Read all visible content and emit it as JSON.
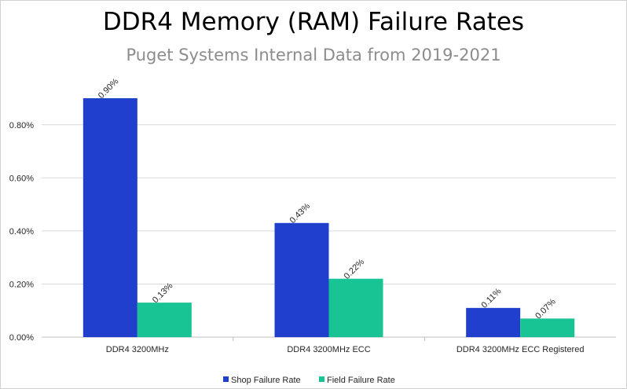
{
  "chart_data": {
    "type": "bar",
    "title": "DDR4 Memory (RAM) Failure Rates",
    "subtitle": "Puget Systems Internal Data from 2019-2021",
    "categories": [
      "DDR4 3200MHz",
      "DDR4 3200MHz ECC",
      "DDR4 3200MHz ECC Registered"
    ],
    "series": [
      {
        "name": "Shop Failure Rate",
        "values": [
          0.9,
          0.43,
          0.11
        ],
        "labels": [
          "0.90%",
          "0.43%",
          "0.11%"
        ],
        "color": "#1f3fcc"
      },
      {
        "name": "Field Failure Rate",
        "values": [
          0.13,
          0.22,
          0.07
        ],
        "labels": [
          "0.13%",
          "0.22%",
          "0.07%"
        ],
        "color": "#19c494"
      }
    ],
    "ylim": [
      0,
      0.9
    ],
    "yticks": [
      0,
      0.2,
      0.4,
      0.6,
      0.8
    ],
    "ytick_labels": [
      "0.00%",
      "0.20%",
      "0.40%",
      "0.60%",
      "0.80%"
    ],
    "grid": true,
    "legend_position": "bottom"
  }
}
